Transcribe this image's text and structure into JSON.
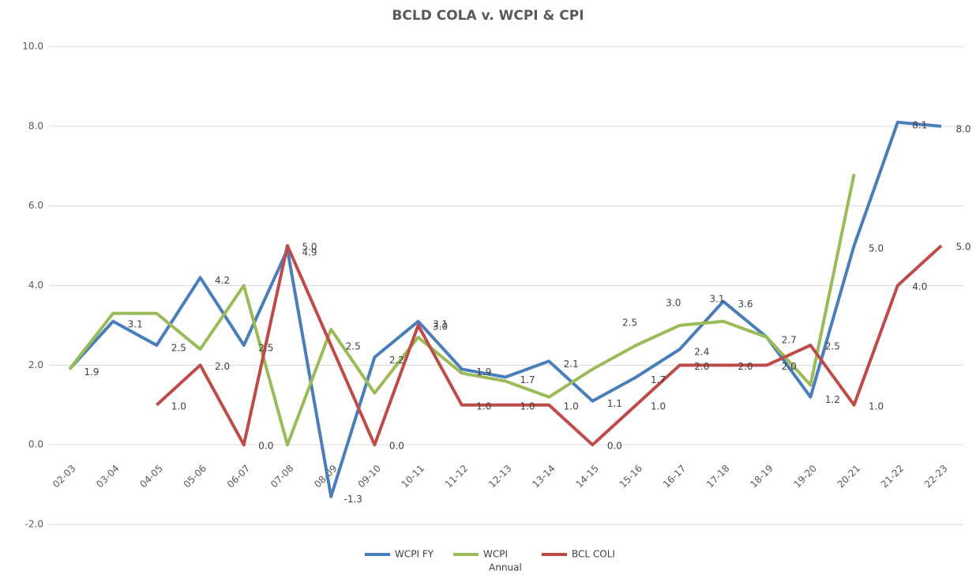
{
  "chart_data": {
    "type": "line",
    "title": "BCLD COLA v. WCPI & CPI",
    "x_label": "Annual",
    "categories": [
      "02-03",
      "03-04",
      "04-05",
      "05-06",
      "06-07",
      "07-08",
      "08-09",
      "09-10",
      "10-11",
      "11-12",
      "12-13",
      "13-14",
      "14-15",
      "15-16",
      "16-17",
      "17-18",
      "18-19",
      "19-20",
      "20-21",
      "21-22",
      "22-23"
    ],
    "ylim": [
      -2,
      10
    ],
    "yticks": [
      {
        "value": -2,
        "label": "-2.0"
      },
      {
        "value": 0,
        "label": "0.0"
      },
      {
        "value": 2,
        "label": "2.0"
      },
      {
        "value": 4,
        "label": "4.0"
      },
      {
        "value": 6,
        "label": "6.0"
      },
      {
        "value": 8,
        "label": "8.0"
      },
      {
        "value": 10,
        "label": "10.0"
      }
    ],
    "grid": true,
    "legend": "bottom",
    "series": [
      {
        "name": "WCPI FY",
        "color": "#4a7ebb",
        "values": [
          1.9,
          3.1,
          2.5,
          4.2,
          2.5,
          4.9,
          -1.3,
          2.2,
          3.1,
          1.9,
          1.7,
          2.1,
          1.1,
          1.7,
          2.4,
          3.6,
          2.7,
          1.2,
          5.0,
          8.1,
          8.0
        ],
        "value_labels": [
          "1.9",
          "3.1",
          "2.5",
          "4.2",
          "2.5",
          "4.9",
          "-1.3",
          "2.2",
          "3.1",
          "1.9",
          "1.7",
          "2.1",
          "1.1",
          "1.7",
          "2.4",
          "3.6",
          "2.7",
          "1.2",
          "5.0",
          "8.1",
          "8.0"
        ]
      },
      {
        "name": "WCPI",
        "color": "#9bbb59",
        "values": [
          1.9,
          3.3,
          3.3,
          2.4,
          4.0,
          0.0,
          2.9,
          1.3,
          2.7,
          1.8,
          1.6,
          1.2,
          1.9,
          2.5,
          3.0,
          3.1,
          2.7,
          1.5,
          6.8,
          null,
          null
        ],
        "value_labels": [
          null,
          null,
          null,
          null,
          null,
          null,
          null,
          null,
          null,
          null,
          null,
          null,
          null,
          "2.5",
          "3.0",
          "3.1",
          null,
          null,
          null,
          null,
          null
        ]
      },
      {
        "name": "BCL COLI",
        "color": "#be4b48",
        "values": [
          null,
          null,
          1.0,
          2.0,
          0.0,
          5.0,
          2.5,
          0.0,
          3.0,
          1.0,
          1.0,
          1.0,
          0.0,
          1.0,
          2.0,
          2.0,
          2.0,
          2.5,
          1.0,
          4.0,
          5.0
        ],
        "value_labels": [
          null,
          null,
          "1.0",
          "2.0",
          "0.0",
          "5.0",
          "2.5",
          "0.0",
          "3.0",
          "1.0",
          "1.0",
          "1.0",
          "0.0",
          "1.0",
          "2.0",
          "2.0",
          "2.0",
          "2.5",
          "1.0",
          "4.0",
          "5.0"
        ]
      }
    ]
  }
}
